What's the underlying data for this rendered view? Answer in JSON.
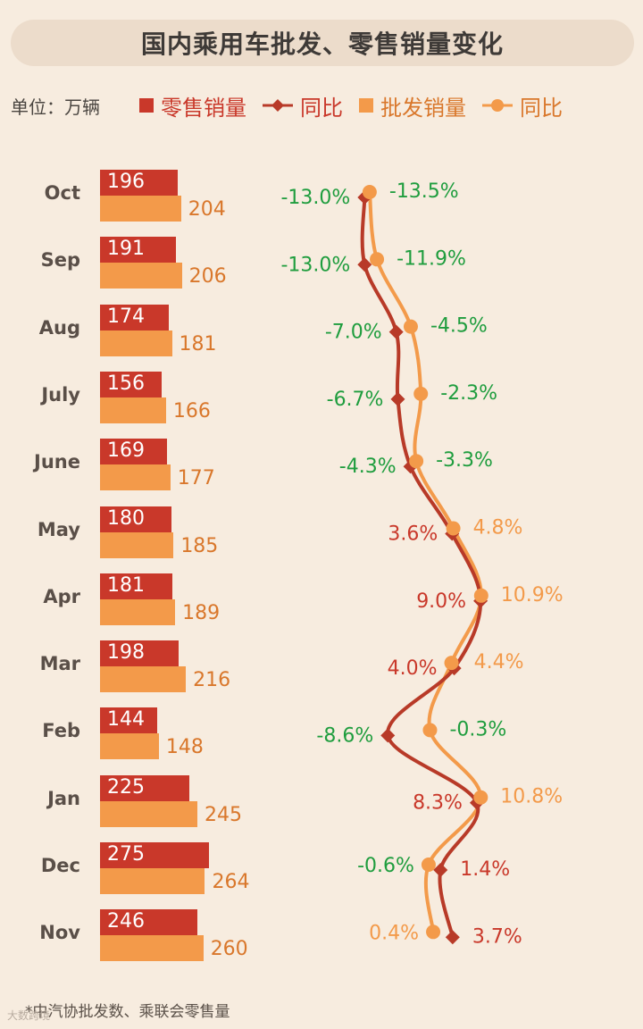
{
  "title": "国内乘用车批发、零售销量变化",
  "unit_label": "单位：万辆",
  "legend": [
    {
      "label": "零售销量",
      "color": "#c9382a",
      "marker": "square"
    },
    {
      "label": "同比",
      "color": "#b83a28",
      "marker": "diamond-line"
    },
    {
      "label": "批发销量",
      "color": "#f39a4a",
      "marker": "square"
    },
    {
      "label": "同比",
      "color": "#f39a4a",
      "marker": "circle-line"
    }
  ],
  "colors": {
    "retail": "#c9382a",
    "wholesale": "#f39a4a",
    "retail_line": "#b83a28",
    "negative": "#1f9d3e"
  },
  "footnote": "*中汽协批发数、乘联会零售量",
  "watermark": "大数跨境",
  "chart_data": {
    "type": "bar",
    "orientation": "horizontal",
    "categories": [
      "Oct",
      "Sep",
      "Aug",
      "July",
      "June",
      "May",
      "Apr",
      "Mar",
      "Feb",
      "Jan",
      "Dec",
      "Nov"
    ],
    "series": [
      {
        "name": "零售销量",
        "values": [
          196,
          191,
          174,
          156,
          169,
          180,
          181,
          198,
          144,
          225,
          275,
          246
        ]
      },
      {
        "name": "批发销量",
        "values": [
          204,
          206,
          181,
          166,
          177,
          185,
          189,
          216,
          148,
          245,
          264,
          260
        ]
      }
    ],
    "yoy_series": [
      {
        "name": "同比",
        "of": "零售销量",
        "values": [
          -13.0,
          -13.0,
          -7.0,
          -6.7,
          -4.3,
          3.6,
          9.0,
          4.0,
          -8.6,
          8.3,
          1.4,
          3.7
        ],
        "labels": [
          "-13.0%",
          "-13.0%",
          "-7.0%",
          "-6.7%",
          "-4.3%",
          "3.6%",
          "9.0%",
          "4.0%",
          "-8.6%",
          "8.3%",
          "1.4%",
          "3.7%"
        ]
      },
      {
        "name": "同比",
        "of": "批发销量",
        "values": [
          -13.5,
          -11.9,
          -4.5,
          -2.3,
          -3.3,
          4.8,
          10.9,
          4.4,
          -0.3,
          10.8,
          -0.6,
          0.4
        ],
        "labels": [
          "-13.5%",
          "-11.9%",
          "-4.5%",
          "-2.3%",
          "-3.3%",
          "4.8%",
          "10.9%",
          "4.4%",
          "-0.3%",
          "10.8%",
          "-0.6%",
          "0.4%"
        ]
      }
    ],
    "data_labels": true,
    "grid": false,
    "legend_position": "top"
  }
}
